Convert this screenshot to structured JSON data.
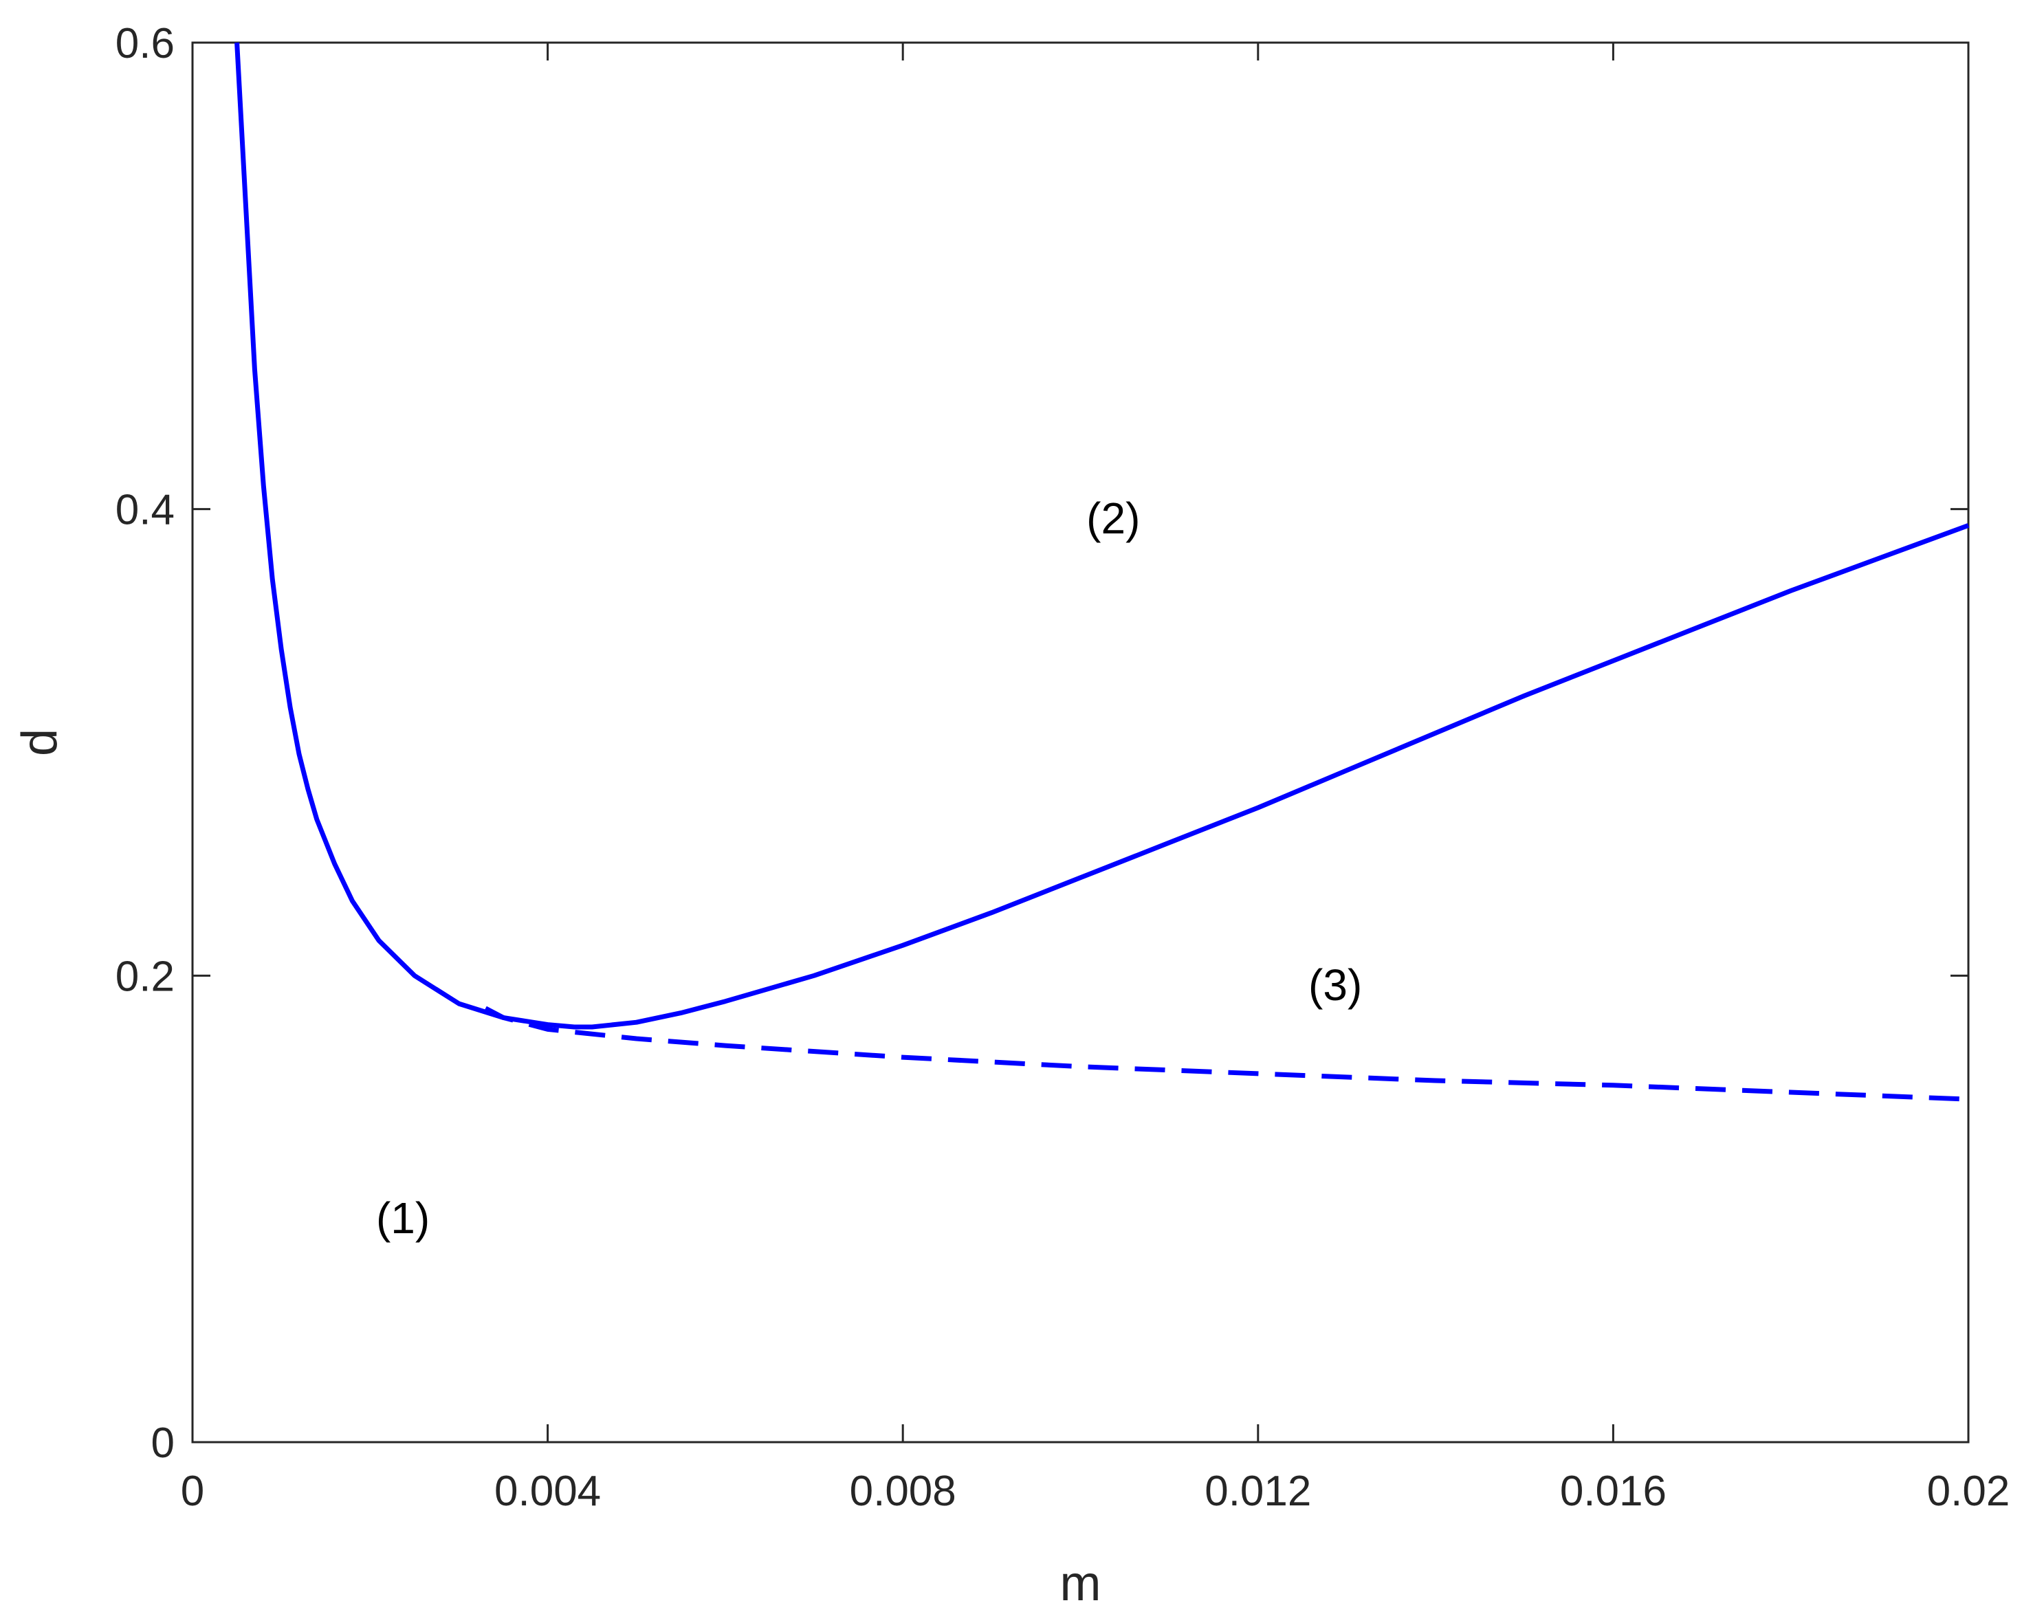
{
  "chart_data": {
    "type": "line",
    "xlabel": "m",
    "ylabel": "d",
    "xlim": [
      0,
      0.02
    ],
    "ylim": [
      0,
      0.6
    ],
    "x_ticks": [
      "0",
      "0.004",
      "0.008",
      "0.012",
      "0.016",
      "0.02"
    ],
    "x_tick_values": [
      0,
      0.004,
      0.008,
      0.012,
      0.016,
      0.02
    ],
    "y_ticks": [
      "0",
      "0.2",
      "0.4",
      "0.6"
    ],
    "y_tick_values": [
      0,
      0.2,
      0.4,
      0.6
    ],
    "grid": false,
    "series": [
      {
        "style": "solid",
        "color": "#0000ff",
        "x": [
          0.0005,
          0.0006,
          0.0007,
          0.0008,
          0.0009,
          0.001,
          0.0011,
          0.0012,
          0.0013,
          0.0014,
          0.0016,
          0.0018,
          0.0021,
          0.0025,
          0.003,
          0.0035,
          0.004,
          0.0043,
          0.0045,
          0.005,
          0.0055,
          0.006,
          0.007,
          0.008,
          0.009,
          0.01,
          0.011,
          0.012,
          0.013,
          0.014,
          0.015,
          0.016,
          0.017,
          0.018,
          0.019,
          0.02
        ],
        "y": [
          0.6,
          0.53,
          0.46,
          0.41,
          0.37,
          0.34,
          0.315,
          0.295,
          0.28,
          0.267,
          0.248,
          0.232,
          0.215,
          0.2,
          0.188,
          0.182,
          0.179,
          0.178,
          0.178,
          0.18,
          0.184,
          0.189,
          0.2,
          0.213,
          0.227,
          0.242,
          0.257,
          0.272,
          0.288,
          0.304,
          0.32,
          0.335,
          0.35,
          0.365,
          0.379,
          0.393
        ]
      },
      {
        "style": "dashed",
        "color": "#0000ff",
        "x": [
          0.0033,
          0.0035,
          0.004,
          0.005,
          0.006,
          0.008,
          0.01,
          0.012,
          0.014,
          0.016,
          0.018,
          0.02
        ],
        "y": [
          0.186,
          0.182,
          0.177,
          0.173,
          0.17,
          0.165,
          0.161,
          0.158,
          0.155,
          0.153,
          0.15,
          0.147
        ]
      }
    ],
    "annotations": [
      {
        "text": "(1)",
        "x": 0.00237,
        "y": 0.096
      },
      {
        "text": "(2)",
        "x": 0.01037,
        "y": 0.396
      },
      {
        "text": "(3)",
        "x": 0.01287,
        "y": 0.196
      }
    ]
  }
}
